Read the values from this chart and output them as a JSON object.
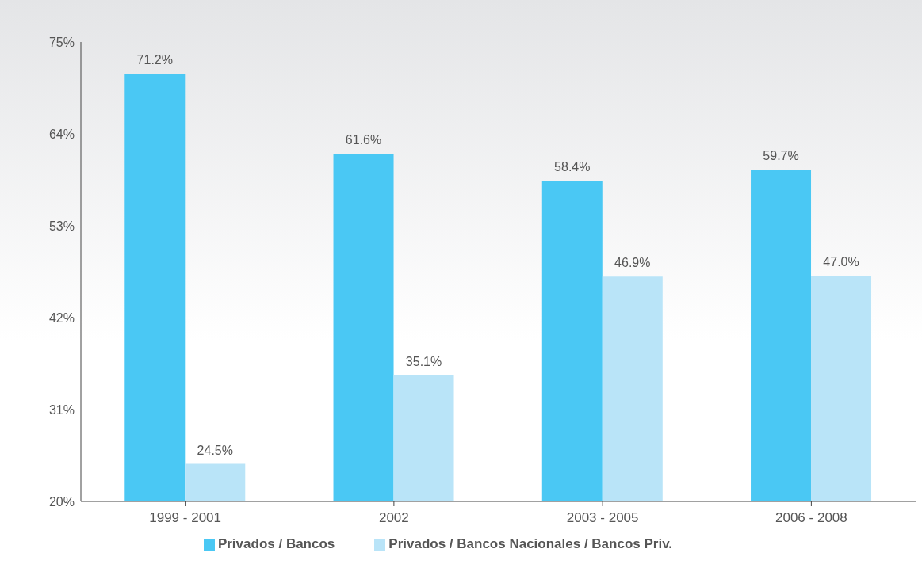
{
  "chart_data": {
    "type": "bar",
    "categories": [
      "1999 - 2001",
      "2002",
      "2003 - 2005",
      "2006 - 2008"
    ],
    "series": [
      {
        "name": "Privados / Bancos",
        "color": "#4ac8f4",
        "values": [
          71.2,
          61.6,
          58.4,
          59.7
        ],
        "value_labels": [
          "71.2%",
          "61.6%",
          "58.4%",
          "59.7%"
        ]
      },
      {
        "name": "Privados / Bancos Nacionales / Bancos Priv.",
        "color": "#b9e4f8",
        "values": [
          24.5,
          35.1,
          46.9,
          47.0
        ],
        "value_labels": [
          "24.5%",
          "35.1%",
          "46.9%",
          "47.0%"
        ]
      }
    ],
    "ylim": [
      20,
      75
    ],
    "yticks": [
      {
        "value": 20,
        "label": "20%"
      },
      {
        "value": 31,
        "label": "31%"
      },
      {
        "value": 42,
        "label": "42%"
      },
      {
        "value": 53,
        "label": "53%"
      },
      {
        "value": 64,
        "label": "64%"
      },
      {
        "value": 75,
        "label": "75%"
      }
    ],
    "legend": "bottom"
  }
}
